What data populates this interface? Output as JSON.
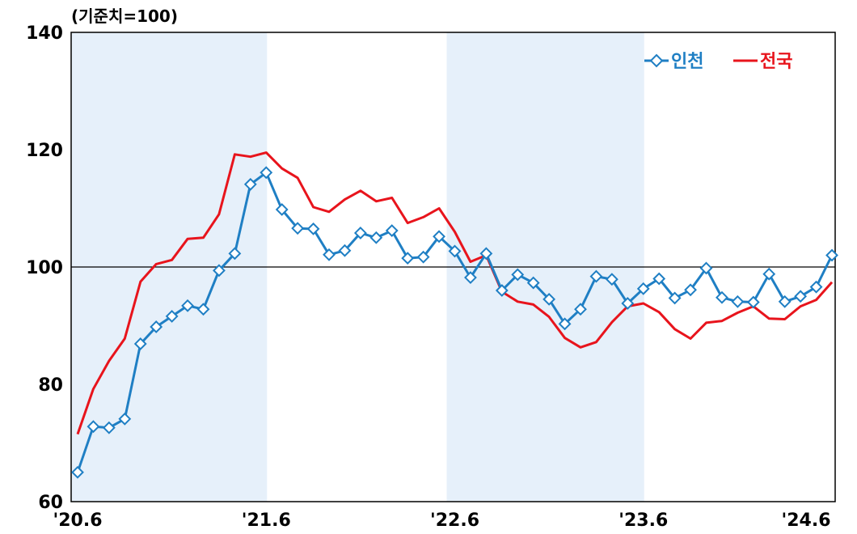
{
  "chart_data": {
    "type": "line",
    "unit_label": "(기준치=100)",
    "y_ticks": [
      "60",
      "80",
      "100",
      "120",
      "140"
    ],
    "ylim": [
      60,
      140
    ],
    "x_ticks": [
      "'20.6",
      "'21.6",
      "'22.6",
      "'23.6",
      "'24.6"
    ],
    "x_range_months": [
      "2020-06",
      "2024-06"
    ],
    "reference_line": 100,
    "shaded_periods": [
      [
        "2020-06",
        "2021-06"
      ],
      [
        "2022-06",
        "2023-06"
      ]
    ],
    "grid": false,
    "legend_position": "top-right",
    "series": [
      {
        "name": "인천",
        "color": "#1f7fc4",
        "marker": "diamond",
        "values": [
          65.0,
          72.8,
          72.6,
          74.1,
          86.9,
          89.8,
          91.6,
          93.4,
          92.8,
          99.4,
          102.3,
          114.1,
          116.1,
          109.8,
          106.6,
          106.5,
          102.1,
          102.8,
          105.8,
          105.0,
          106.2,
          101.5,
          101.7,
          105.2,
          102.7,
          98.2,
          102.3,
          96.0,
          98.7,
          97.3,
          94.5,
          90.3,
          92.8,
          98.4,
          97.9,
          93.8,
          96.3,
          98.0,
          94.7,
          96.1,
          99.8,
          94.8,
          94.1,
          94.0,
          98.8,
          94.1,
          95.0,
          96.6,
          102.0
        ]
      },
      {
        "name": "전국",
        "color": "#e8141c",
        "marker": "none",
        "values": [
          71.5,
          79.2,
          84.0,
          87.8,
          97.5,
          100.5,
          101.2,
          104.8,
          105.0,
          109.0,
          119.2,
          118.8,
          119.5,
          116.8,
          115.2,
          110.2,
          109.4,
          111.5,
          113.0,
          111.2,
          111.8,
          107.5,
          108.5,
          110.0,
          106.0,
          100.9,
          102.0,
          95.8,
          94.1,
          93.6,
          91.5,
          87.9,
          86.3,
          87.2,
          90.6,
          93.3,
          93.8,
          92.3,
          89.4,
          87.8,
          90.5,
          90.8,
          92.2,
          93.3,
          91.2,
          91.1,
          93.3,
          94.4,
          97.4
        ]
      }
    ]
  }
}
